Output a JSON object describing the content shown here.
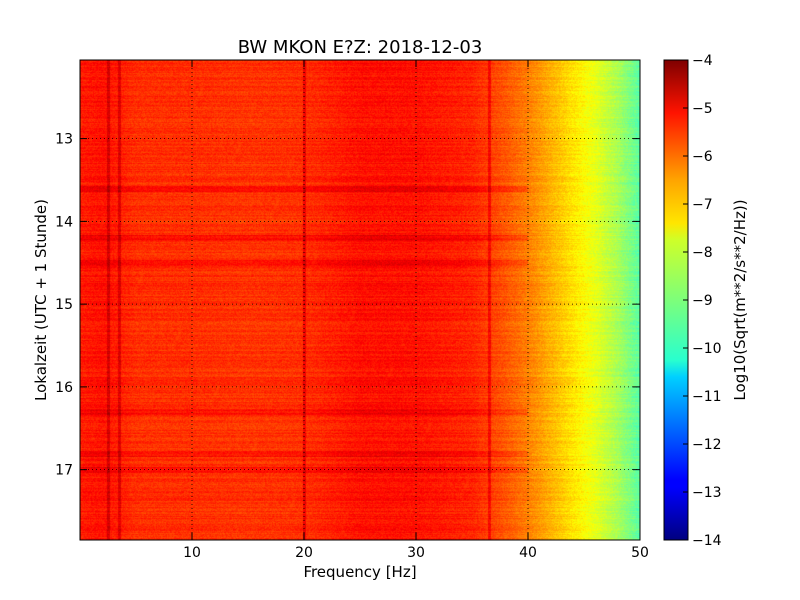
{
  "chart_data": {
    "type": "heatmap",
    "title": "BW MKON E?Z: 2018-12-03",
    "xlabel": "Frequency [Hz]",
    "ylabel": "Lokalzeit (UTC + 1 Stunde)",
    "xlim": [
      0,
      50
    ],
    "ylim": [
      17.85,
      12.05
    ],
    "x_ticks": [
      10,
      20,
      30,
      40,
      50
    ],
    "x_tick_labels": [
      "10",
      "20",
      "30",
      "40",
      "50"
    ],
    "y_ticks": [
      13,
      14,
      15,
      16,
      17
    ],
    "y_tick_labels": [
      "13",
      "14",
      "15",
      "16",
      "17"
    ],
    "grid": true,
    "colormap": "jet",
    "colorbar": {
      "label": "Log10(Sqrt(m**2/s**2/Hz))",
      "range": [
        -14,
        -4
      ],
      "ticks": [
        -4,
        -5,
        -6,
        -7,
        -8,
        -9,
        -10,
        -11,
        -12,
        -13,
        -14
      ],
      "tick_labels": [
        "−4",
        "−5",
        "−6",
        "−7",
        "−8",
        "−9",
        "−10",
        "−11",
        "−12",
        "−13",
        "−14"
      ]
    },
    "frequency_profile": {
      "frequency_hz": [
        0,
        2,
        5,
        10,
        15,
        20,
        25,
        30,
        35,
        38,
        40,
        42,
        44,
        46,
        48,
        50
      ],
      "log10_amplitude": [
        -5.5,
        -5.4,
        -5.7,
        -5.7,
        -5.75,
        -5.7,
        -5.4,
        -5.4,
        -5.6,
        -6.1,
        -6.5,
        -7.0,
        -7.5,
        -8.0,
        -8.6,
        -9.4
      ]
    },
    "vertical_lines_hz": [
      2.5,
      3.5,
      20.0,
      36.5
    ],
    "horizontal_bands_h": [
      13.6,
      14.2,
      14.5,
      16.3,
      16.8,
      17.0
    ]
  }
}
